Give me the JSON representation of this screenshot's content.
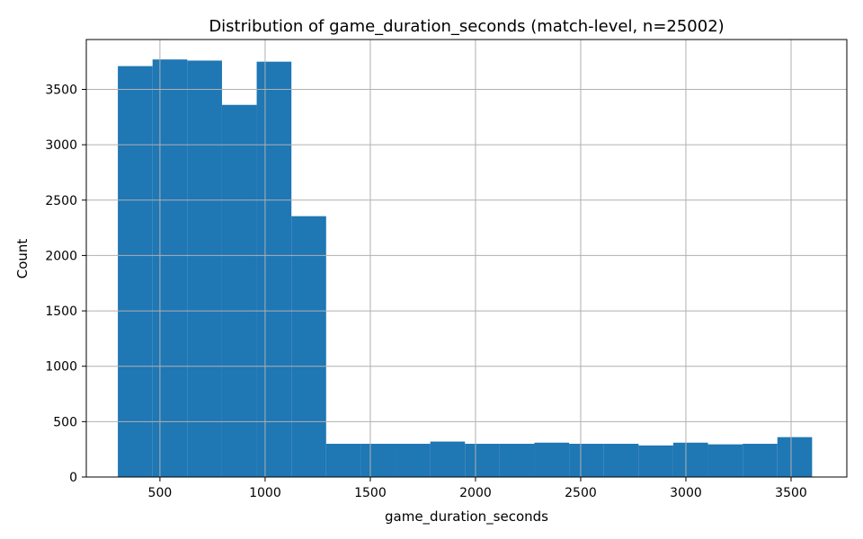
{
  "chart_data": {
    "type": "bar",
    "title": "Distribution of game_duration_seconds (match-level, n=25002)",
    "xlabel": "game_duration_seconds",
    "ylabel": "Count",
    "xlim": [
      150,
      3765
    ],
    "ylim": [
      0,
      3950
    ],
    "grid": true,
    "bar_color": "#1f77b4",
    "x_ticks": [
      500,
      1000,
      1500,
      2000,
      2500,
      3000,
      3500
    ],
    "y_ticks": [
      0,
      500,
      1000,
      1500,
      2000,
      2500,
      3000,
      3500
    ],
    "bin_edges": [
      300,
      465,
      630,
      795,
      960,
      1125,
      1290,
      1455,
      1620,
      1785,
      1950,
      2115,
      2280,
      2445,
      2610,
      2775,
      2940,
      3105,
      3270,
      3435,
      3600
    ],
    "values": [
      3710,
      3770,
      3760,
      3360,
      3750,
      2355,
      300,
      300,
      300,
      320,
      300,
      300,
      310,
      300,
      300,
      285,
      310,
      295,
      300,
      360
    ]
  }
}
